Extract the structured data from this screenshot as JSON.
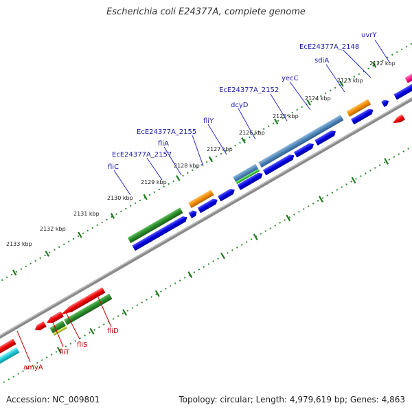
{
  "title": "Escherichia coli E24377A, complete genome",
  "footer": {
    "accession": "Accession: NC_009801",
    "topology": "Topology: circular; Length: 4,979,619 bp; Genes: 4,863"
  },
  "colors": {
    "background": "#ffffff",
    "backbone": "#888888",
    "tick": "#2e8b2e",
    "label_blue": "#1a1aa8",
    "label_red": "#c00000",
    "blue": "#0000e0",
    "dark_green": "#2a8a2a",
    "steel_blue": "#4f86b8",
    "orange": "#f08c00",
    "red": "#ee0000",
    "cyan": "#1ec8d8",
    "pink": "#ff1a8c",
    "yellow_green": "#b8d432"
  },
  "kbp_labels": [
    "2122 kbp",
    "2123 kbp",
    "2124 kbp",
    "2125 kbp",
    "2126 kbp",
    "2127 kbp",
    "2128 kbp",
    "2129 kbp",
    "2130 kbp",
    "2131 kbp",
    "2132 kbp",
    "2133 kbp"
  ],
  "gene_labels_top": [
    "uvrY",
    "EcE24377A_2148",
    "sdiA",
    "yecC",
    "EcE24377A_2152",
    "dcyD",
    "fliY",
    "EcE24377A_2155",
    "fliA",
    "EcE24377A_2157",
    "fliC"
  ],
  "gene_labels_bottom": [
    "fliD",
    "fliS",
    "fliT",
    "amyA"
  ]
}
